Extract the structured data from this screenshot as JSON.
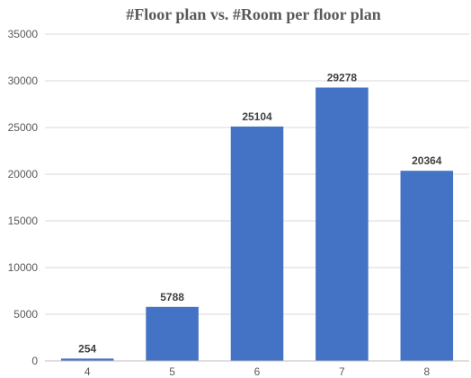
{
  "chart_data": {
    "type": "bar",
    "title": "#Floor plan vs. #Room per floor plan",
    "xlabel": "",
    "ylabel": "",
    "categories": [
      "4",
      "5",
      "6",
      "7",
      "8"
    ],
    "values": [
      254,
      5788,
      25104,
      29278,
      20364
    ],
    "ylim": [
      0,
      35000
    ],
    "yticks": [
      0,
      5000,
      10000,
      15000,
      20000,
      25000,
      30000,
      35000
    ],
    "grid": true,
    "legend": "none",
    "data_labels": true,
    "bar_color": "#4472c4"
  }
}
